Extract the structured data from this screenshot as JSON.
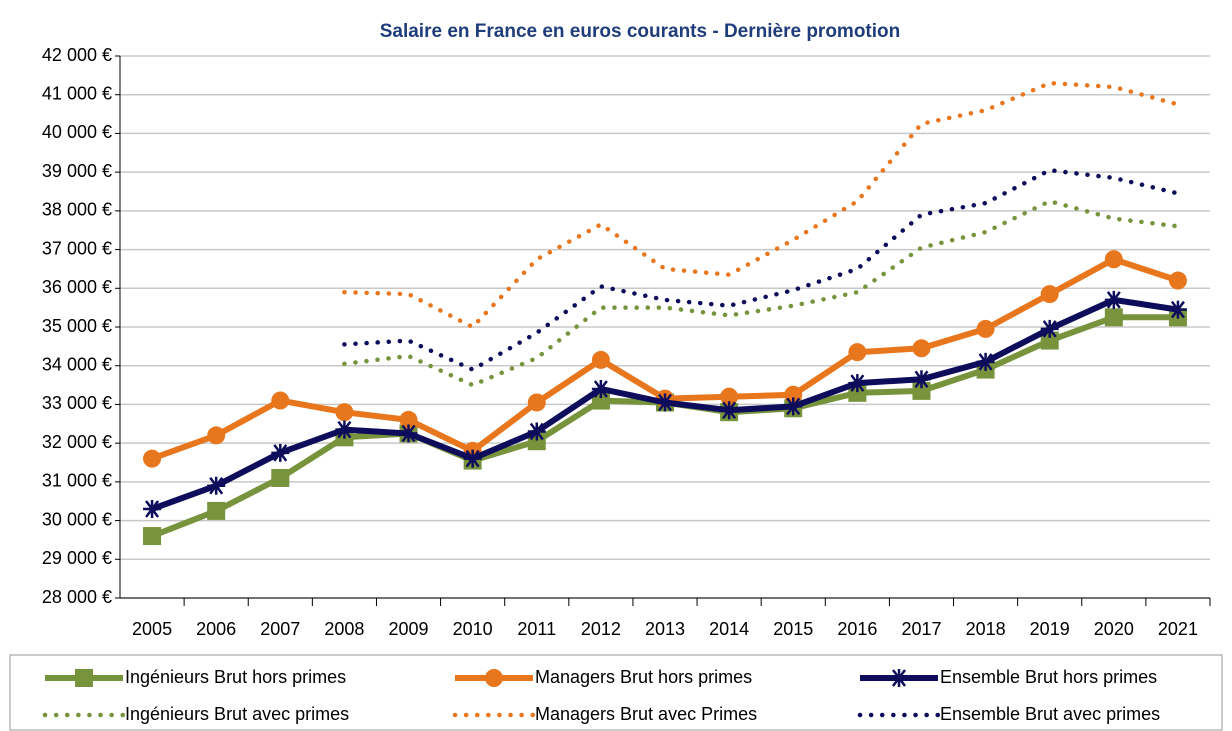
{
  "chart_data": {
    "type": "line",
    "title": "Salaire en France en euros courants - Dernière promotion",
    "categories": [
      "2005",
      "2006",
      "2007",
      "2008",
      "2009",
      "2010",
      "2011",
      "2012",
      "2013",
      "2014",
      "2015",
      "2016",
      "2017",
      "2018",
      "2019",
      "2020",
      "2021"
    ],
    "series": [
      {
        "name": "Ingénieurs Brut hors primes",
        "color": "#77933c",
        "style": "solid",
        "marker": "square",
        "values": [
          29600,
          30250,
          31100,
          32150,
          32250,
          31550,
          32050,
          33100,
          33050,
          32800,
          32900,
          33300,
          33350,
          33900,
          34650,
          35250,
          35250
        ]
      },
      {
        "name": "Managers Brut hors primes",
        "color": "#e8761d",
        "style": "solid",
        "marker": "circle",
        "values": [
          31600,
          32200,
          33100,
          32800,
          32600,
          31800,
          33050,
          34150,
          33150,
          33200,
          33250,
          34350,
          34450,
          34950,
          35850,
          36750,
          36200
        ]
      },
      {
        "name": "Ensemble Brut hors primes",
        "color": "#0d0d5c",
        "style": "solid",
        "marker": "star",
        "values": [
          30300,
          30900,
          31750,
          32350,
          32250,
          31600,
          32300,
          33400,
          33050,
          32850,
          32950,
          33550,
          33650,
          34100,
          34950,
          35700,
          35450
        ]
      },
      {
        "name": "Ingénieurs Brut avec primes",
        "color": "#77933c",
        "style": "dotted",
        "marker": "none",
        "values": [
          null,
          null,
          null,
          34050,
          34250,
          33500,
          34200,
          35500,
          35500,
          35300,
          35550,
          35900,
          37050,
          37450,
          38250,
          37800,
          37600
        ]
      },
      {
        "name": "Managers Brut avec Primes",
        "color": "#e8761d",
        "style": "dotted",
        "marker": "none",
        "values": [
          null,
          null,
          null,
          35900,
          35850,
          35000,
          36750,
          37650,
          36500,
          36350,
          37250,
          38250,
          40250,
          40600,
          41300,
          41200,
          40750
        ]
      },
      {
        "name": "Ensemble Brut avec primes",
        "color": "#0d0d5c",
        "style": "dotted",
        "marker": "none",
        "values": [
          null,
          null,
          null,
          34550,
          34650,
          33900,
          34850,
          36050,
          35700,
          35550,
          35950,
          36500,
          37900,
          38200,
          39050,
          38850,
          38450
        ]
      }
    ],
    "ylim": [
      28000,
      42000
    ],
    "yticks": [
      {
        "value": 28000,
        "label": "28 000 €"
      },
      {
        "value": 29000,
        "label": "29 000 €"
      },
      {
        "value": 30000,
        "label": "30 000 €"
      },
      {
        "value": 31000,
        "label": "31 000 €"
      },
      {
        "value": 32000,
        "label": "32 000 €"
      },
      {
        "value": 33000,
        "label": "33 000 €"
      },
      {
        "value": 34000,
        "label": "34 000 €"
      },
      {
        "value": 35000,
        "label": "35 000 €"
      },
      {
        "value": 36000,
        "label": "36 000 €"
      },
      {
        "value": 37000,
        "label": "37 000 €"
      },
      {
        "value": 38000,
        "label": "38 000 €"
      },
      {
        "value": 39000,
        "label": "39 000 €"
      },
      {
        "value": 40000,
        "label": "40 000 €"
      },
      {
        "value": 41000,
        "label": "41 000 €"
      },
      {
        "value": 42000,
        "label": "42 000 €"
      }
    ],
    "grid": true,
    "legend": "bottom"
  }
}
